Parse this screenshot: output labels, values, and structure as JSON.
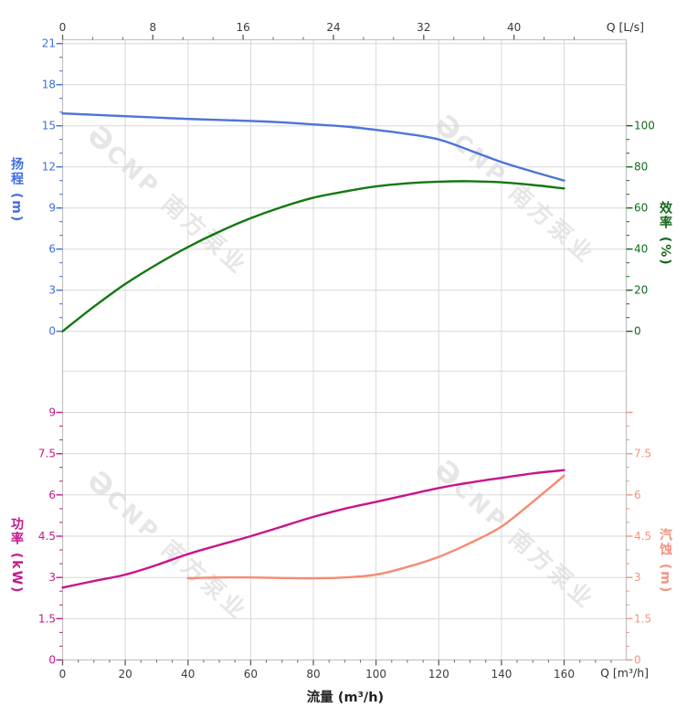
{
  "watermark": {
    "logo": "Ə",
    "text": "CNP 南方泵业"
  },
  "colors": {
    "head": "#4f74d8",
    "head_text": "#3e6ee0",
    "efficiency": "#137813",
    "efficiency_text": "#15691c",
    "power": "#c9148c",
    "power_text": "#c4188e",
    "npsh": "#f88a72",
    "npsh_text": "#f5937f",
    "grid": "#d8d8d8",
    "axis_line": "#c4c4c4",
    "tick": "#666666",
    "tick_text": "#3c3c3c"
  },
  "axes": {
    "top": {
      "unit": "Q [L/s]",
      "tick_labels": [
        0,
        8,
        16,
        24,
        32,
        40
      ]
    },
    "bottom": {
      "unit": "Q [m³/h]",
      "title": "流量 (m³/h)",
      "tick_labels": [
        0,
        20,
        40,
        60,
        80,
        100,
        120,
        140,
        160
      ]
    },
    "head": {
      "title": "扬程 (m)",
      "tick_labels": [
        0,
        3,
        6,
        9,
        12,
        15,
        18,
        21
      ]
    },
    "eff": {
      "title": "效率 (%)",
      "tick_labels": [
        0,
        20,
        40,
        60,
        80,
        100
      ]
    },
    "power": {
      "title": "功率 (kW)",
      "tick_labels": [
        0,
        1.5,
        3,
        4.5,
        6,
        7.5,
        9
      ]
    },
    "npsh": {
      "title": "汽蚀 (m)",
      "tick_labels": [
        0,
        1.5,
        3,
        4.5,
        6,
        7.5
      ]
    }
  },
  "chart_data": [
    {
      "type": "line",
      "name": "扬程 (Head)",
      "unit": "m",
      "axis": "upper-left",
      "color_key": "head",
      "ylim": [
        0,
        21
      ],
      "grid_step": 3,
      "x": [
        0,
        10,
        20,
        30,
        40,
        50,
        60,
        70,
        80,
        90,
        100,
        110,
        120,
        130,
        140,
        150,
        160
      ],
      "y": [
        15.9,
        15.8,
        15.7,
        15.6,
        15.5,
        15.43,
        15.35,
        15.25,
        15.1,
        14.95,
        14.7,
        14.4,
        14.0,
        13.2,
        12.35,
        11.65,
        11.0
      ]
    },
    {
      "type": "line",
      "name": "效率 (Efficiency)",
      "unit": "%",
      "axis": "upper-right",
      "color_key": "efficiency",
      "ylim": [
        0,
        100
      ],
      "grid_step": 20,
      "x": [
        0,
        10,
        20,
        30,
        40,
        50,
        60,
        70,
        80,
        90,
        100,
        110,
        120,
        130,
        140,
        150,
        160
      ],
      "y": [
        0,
        12,
        23,
        32.5,
        41,
        48.5,
        55,
        60.5,
        65,
        68,
        70.5,
        72,
        72.8,
        73,
        72.5,
        71.2,
        69.5
      ]
    },
    {
      "type": "line",
      "name": "功率 (Power)",
      "unit": "kW",
      "axis": "lower-left",
      "color_key": "power",
      "ylim": [
        0,
        10.5
      ],
      "grid_step": 1.5,
      "x": [
        0,
        10,
        20,
        30,
        40,
        50,
        60,
        70,
        80,
        90,
        100,
        110,
        120,
        130,
        140,
        150,
        160
      ],
      "y": [
        2.63,
        2.87,
        3.1,
        3.45,
        3.85,
        4.18,
        4.5,
        4.85,
        5.2,
        5.5,
        5.75,
        6.0,
        6.25,
        6.45,
        6.62,
        6.78,
        6.9
      ]
    },
    {
      "type": "line",
      "name": "汽蚀 (NPSH)",
      "unit": "m",
      "axis": "lower-right",
      "color_key": "npsh",
      "ylim": [
        0,
        7.5
      ],
      "grid_step": 1.5,
      "x": [
        40,
        50,
        60,
        70,
        80,
        90,
        100,
        110,
        120,
        130,
        140,
        150,
        160
      ],
      "y": [
        2.97,
        3.0,
        3.0,
        2.98,
        2.97,
        3.0,
        3.1,
        3.38,
        3.75,
        4.25,
        4.85,
        5.75,
        6.7
      ]
    }
  ],
  "x_axis_info": {
    "range_m3h": [
      0,
      180
    ],
    "conversion": "1 L/s = 3.6 m³/h"
  }
}
